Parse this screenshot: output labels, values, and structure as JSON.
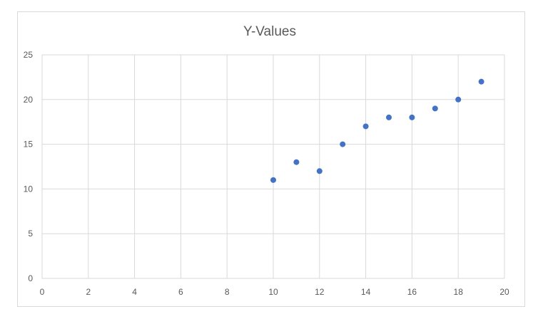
{
  "chart_data": {
    "type": "scatter",
    "title": "Y-Values",
    "xlabel": "",
    "ylabel": "",
    "xlim": [
      0,
      20
    ],
    "ylim": [
      0,
      25
    ],
    "x_ticks": [
      0,
      2,
      4,
      6,
      8,
      10,
      12,
      14,
      16,
      18,
      20
    ],
    "y_ticks": [
      0,
      5,
      10,
      15,
      20,
      25
    ],
    "grid": true,
    "legend": "none",
    "series": [
      {
        "color": "#4472c4",
        "points": [
          {
            "x": 10,
            "y": 11
          },
          {
            "x": 11,
            "y": 13
          },
          {
            "x": 12,
            "y": 12
          },
          {
            "x": 13,
            "y": 15
          },
          {
            "x": 14,
            "y": 17
          },
          {
            "x": 15,
            "y": 18
          },
          {
            "x": 16,
            "y": 18
          },
          {
            "x": 17,
            "y": 19
          },
          {
            "x": 18,
            "y": 20
          },
          {
            "x": 19,
            "y": 22
          }
        ]
      }
    ]
  }
}
